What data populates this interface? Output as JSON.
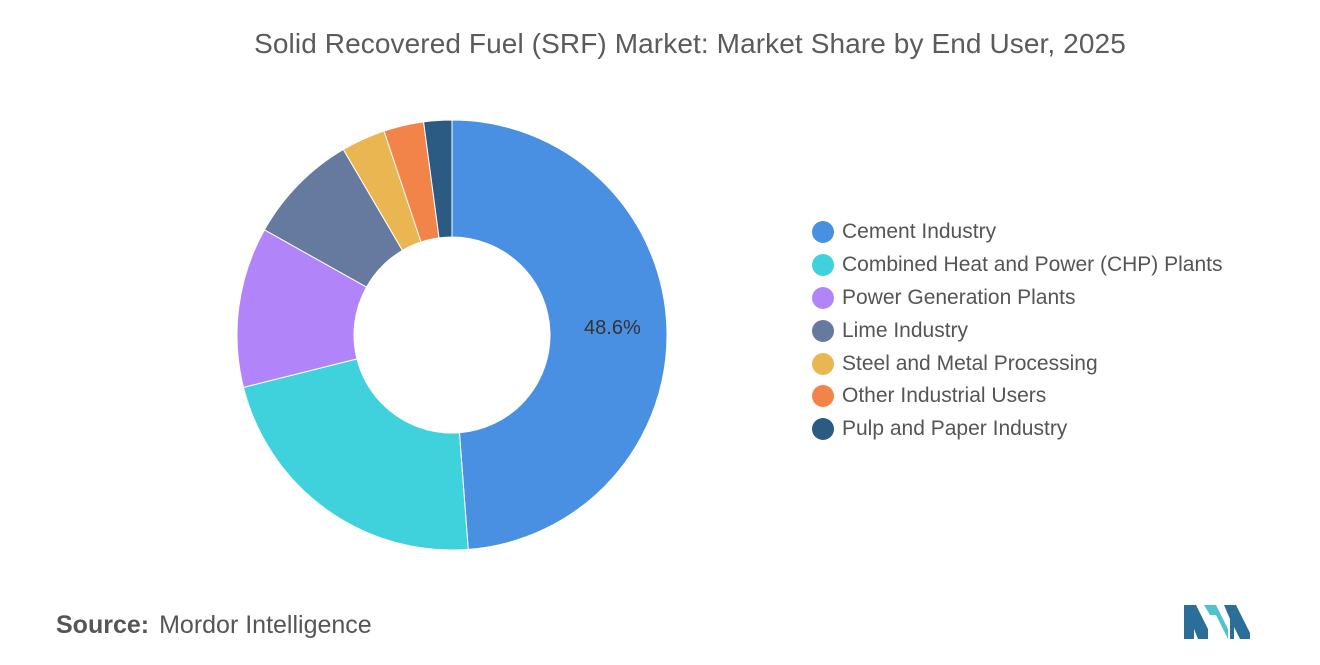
{
  "chart_data": {
    "type": "pie",
    "donut": true,
    "title": "Solid Recovered Fuel (SRF) Market: Market Share by End User, 2025",
    "categories": [
      "Cement Industry",
      "Combined Heat and Power (CHP) Plants",
      "Power Generation Plants",
      "Lime Industry",
      "Steel and Metal Processing",
      "Other Industrial Users",
      "Pulp and Paper Industry"
    ],
    "values": [
      48.6,
      22.2,
      12.0,
      8.4,
      3.3,
      3.0,
      2.1
    ],
    "colors": [
      "#4a90e2",
      "#40d2dc",
      "#b284fa",
      "#66799e",
      "#eab651",
      "#f2844a",
      "#2b5a82"
    ],
    "data_labels": [
      "48.6%",
      "",
      "",
      "",
      "",
      "",
      ""
    ],
    "legend_position": "right"
  },
  "source": {
    "label": "Source:",
    "text": "Mordor Intelligence"
  },
  "logo": {
    "icon": "mordor-intelligence-logo",
    "colors": [
      "#2b6e9a",
      "#4fc3c9"
    ]
  }
}
